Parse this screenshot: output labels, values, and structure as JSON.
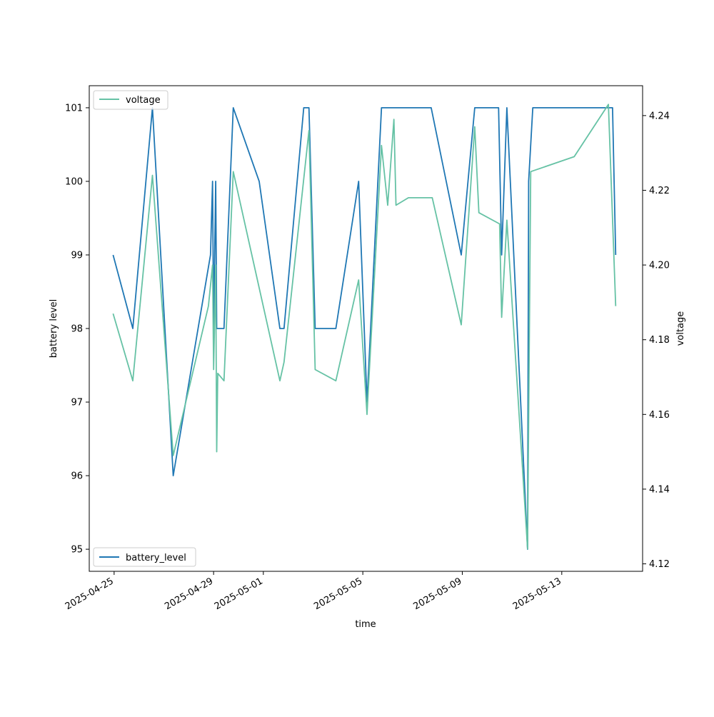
{
  "chart_data": {
    "type": "line",
    "xlabel": "time",
    "ylabel_left": "battery level",
    "ylabel_right": "voltage",
    "xlim": [
      "2025-04-24T00:00:00",
      "2025-05-16T06:00:00"
    ],
    "ylim_left": [
      94.7,
      101.3
    ],
    "ylim_right": [
      4.118,
      4.248
    ],
    "x_ticks": [
      "2025-04-25",
      "2025-04-29",
      "2025-05-01",
      "2025-05-05",
      "2025-05-09",
      "2025-05-13"
    ],
    "y_ticks_left": [
      95,
      96,
      97,
      98,
      99,
      100,
      101
    ],
    "y_ticks_right": [
      4.12,
      4.14,
      4.16,
      4.18,
      4.2,
      4.22,
      4.24
    ],
    "legend_left_axis": "lower left",
    "legend_right_axis": "upper left",
    "series": [
      {
        "name": "battery_level",
        "axis": "left",
        "color": "#1f77b4",
        "points": [
          [
            "2025-04-24T23:00:00",
            99
          ],
          [
            "2025-04-25T18:00:00",
            98
          ],
          [
            "2025-04-26T13:00:00",
            101
          ],
          [
            "2025-04-27T09:00:00",
            96
          ],
          [
            "2025-04-28T21:00:00",
            99
          ],
          [
            "2025-04-28T23:00:00",
            100
          ],
          [
            "2025-04-29T00:00:00",
            98
          ],
          [
            "2025-04-29T02:00:00",
            100
          ],
          [
            "2025-04-29T03:00:00",
            98
          ],
          [
            "2025-04-29T10:00:00",
            98
          ],
          [
            "2025-04-29T19:00:00",
            101
          ],
          [
            "2025-04-30T20:00:00",
            100
          ],
          [
            "2025-05-01T16:00:00",
            98
          ],
          [
            "2025-05-01T20:00:00",
            98
          ],
          [
            "2025-05-02T15:00:00",
            101
          ],
          [
            "2025-05-02T20:00:00",
            101
          ],
          [
            "2025-05-03T02:00:00",
            98
          ],
          [
            "2025-05-03T22:00:00",
            98
          ],
          [
            "2025-05-04T20:00:00",
            100
          ],
          [
            "2025-05-05T04:00:00",
            97
          ],
          [
            "2025-05-05T18:00:00",
            101
          ],
          [
            "2025-05-07T18:00:00",
            101
          ],
          [
            "2025-05-08T23:00:00",
            99
          ],
          [
            "2025-05-09T12:00:00",
            101
          ],
          [
            "2025-05-10T11:00:00",
            101
          ],
          [
            "2025-05-10T14:00:00",
            99
          ],
          [
            "2025-05-10T19:00:00",
            101
          ],
          [
            "2025-05-11T15:00:00",
            95
          ],
          [
            "2025-05-11T16:00:00",
            100
          ],
          [
            "2025-05-11T20:00:00",
            101
          ],
          [
            "2025-05-15T01:00:00",
            101
          ],
          [
            "2025-05-15T04:00:00",
            99
          ]
        ]
      },
      {
        "name": "voltage",
        "axis": "right",
        "color": "#66c2a5",
        "points": [
          [
            "2025-04-24T23:00:00",
            4.187
          ],
          [
            "2025-04-25T18:00:00",
            4.169
          ],
          [
            "2025-04-26T13:00:00",
            4.224
          ],
          [
            "2025-04-27T09:00:00",
            4.149
          ],
          [
            "2025-04-28T19:00:00",
            4.189
          ],
          [
            "2025-04-28T23:00:00",
            4.2
          ],
          [
            "2025-04-29T00:00:00",
            4.172
          ],
          [
            "2025-04-29T02:00:00",
            4.2
          ],
          [
            "2025-04-29T03:00:00",
            4.15
          ],
          [
            "2025-04-29T04:00:00",
            4.171
          ],
          [
            "2025-04-29T10:00:00",
            4.169
          ],
          [
            "2025-04-29T19:00:00",
            4.225
          ],
          [
            "2025-05-01T16:00:00",
            4.169
          ],
          [
            "2025-05-01T20:00:00",
            4.174
          ],
          [
            "2025-05-02T20:00:00",
            4.236
          ],
          [
            "2025-05-03T02:00:00",
            4.172
          ],
          [
            "2025-05-03T22:00:00",
            4.169
          ],
          [
            "2025-05-04T20:00:00",
            4.196
          ],
          [
            "2025-05-05T04:00:00",
            4.16
          ],
          [
            "2025-05-05T18:00:00",
            4.232
          ],
          [
            "2025-05-06T00:00:00",
            4.216
          ],
          [
            "2025-05-06T06:00:00",
            4.239
          ],
          [
            "2025-05-06T08:00:00",
            4.216
          ],
          [
            "2025-05-06T20:00:00",
            4.218
          ],
          [
            "2025-05-07T19:00:00",
            4.218
          ],
          [
            "2025-05-08T23:00:00",
            4.184
          ],
          [
            "2025-05-09T12:00:00",
            4.237
          ],
          [
            "2025-05-09T16:00:00",
            4.214
          ],
          [
            "2025-05-10T12:00:00",
            4.211
          ],
          [
            "2025-05-10T14:00:00",
            4.186
          ],
          [
            "2025-05-10T19:00:00",
            4.212
          ],
          [
            "2025-05-11T15:00:00",
            4.124
          ],
          [
            "2025-05-11T18:00:00",
            4.225
          ],
          [
            "2025-05-13T12:00:00",
            4.229
          ],
          [
            "2025-05-14T21:00:00",
            4.243
          ],
          [
            "2025-05-15T04:00:00",
            4.189
          ]
        ]
      }
    ]
  }
}
